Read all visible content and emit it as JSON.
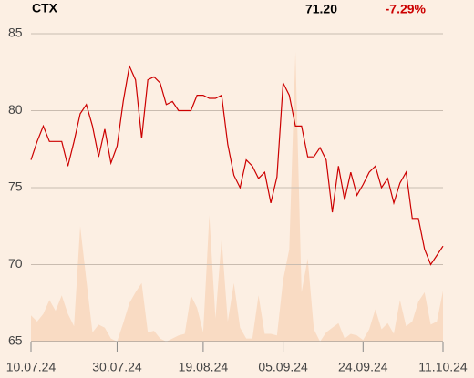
{
  "header": {
    "symbol": "CTX",
    "price": "71.20",
    "change": "-7.29%"
  },
  "chart_data": {
    "type": "line",
    "categories": [
      "10.07.24",
      null,
      null,
      null,
      null,
      null,
      null,
      null,
      null,
      null,
      null,
      null,
      null,
      null,
      "30.07.24",
      null,
      null,
      null,
      null,
      null,
      null,
      null,
      null,
      null,
      null,
      null,
      null,
      null,
      "19.08.24",
      null,
      null,
      null,
      null,
      null,
      null,
      null,
      null,
      null,
      null,
      null,
      null,
      "05.09.24",
      null,
      null,
      null,
      null,
      null,
      null,
      null,
      null,
      null,
      null,
      null,
      null,
      "24.09.24",
      null,
      null,
      null,
      null,
      null,
      null,
      null,
      null,
      null,
      null,
      null,
      null,
      "11.10.24"
    ],
    "series": [
      {
        "style": "area",
        "color": "#f9dbc3",
        "values": [
          66.7,
          66.3,
          66.8,
          67.7,
          67.0,
          68.0,
          66.8,
          66.0,
          72.5,
          69.0,
          65.6,
          66.1,
          65.9,
          65.2,
          65.0,
          66.2,
          67.5,
          68.2,
          68.8,
          65.6,
          65.7,
          65.2,
          65.0,
          65.2,
          65.4,
          65.5,
          68.0,
          67.2,
          65.6,
          73.2,
          66.5,
          71.7,
          66.3,
          68.8,
          65.9,
          65.2,
          65.2,
          68.0,
          65.5,
          65.5,
          65.4,
          69.0,
          71.0,
          83.8,
          68.2,
          70.4,
          65.8,
          65.0,
          65.6,
          65.9,
          66.2,
          65.2,
          65.5,
          65.4,
          65.1,
          65.8,
          67.1,
          65.8,
          66.2,
          65.5,
          67.7,
          66.0,
          66.3,
          67.6,
          68.2,
          66.1,
          66.3,
          68.3
        ]
      },
      {
        "style": "line",
        "color": "#cc0000",
        "values": [
          76.8,
          78.0,
          79.0,
          78.0,
          78.0,
          78.0,
          76.4,
          78.0,
          79.8,
          80.4,
          79.0,
          77.0,
          78.8,
          76.6,
          77.7,
          80.6,
          82.9,
          82.0,
          78.2,
          82.0,
          82.2,
          81.8,
          80.4,
          80.6,
          80.0,
          80.0,
          80.0,
          81.0,
          81.0,
          80.8,
          80.8,
          81.0,
          77.8,
          75.8,
          75.0,
          76.8,
          76.4,
          75.6,
          76.0,
          74.0,
          75.7,
          81.8,
          81.0,
          79.0,
          79.0,
          77.0,
          77.0,
          77.6,
          76.8,
          73.4,
          76.4,
          74.2,
          76.0,
          74.5,
          75.2,
          76.0,
          76.4,
          75.0,
          75.6,
          74.0,
          75.3,
          76.0,
          73.0,
          73.0,
          71.0,
          70.0,
          70.6,
          71.2
        ]
      }
    ],
    "ylim": [
      65,
      85
    ],
    "yticks": [
      65,
      70,
      75,
      80,
      85
    ],
    "grid": true
  }
}
